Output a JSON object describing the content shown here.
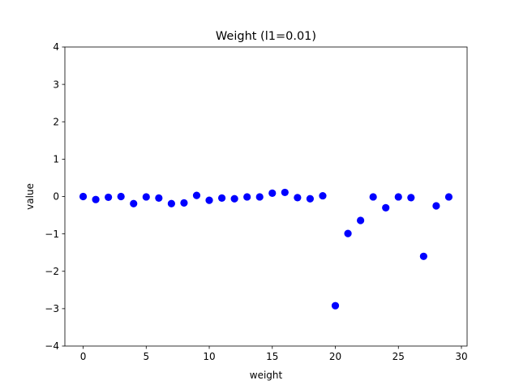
{
  "chart_data": {
    "type": "scatter",
    "title": "Weight (l1=0.01)",
    "xlabel": "weight",
    "ylabel": "value",
    "xlim": [
      -1.45,
      30.45
    ],
    "ylim": [
      -4,
      4
    ],
    "xticks": [
      0,
      5,
      10,
      15,
      20,
      25,
      30
    ],
    "yticks": [
      -4,
      -3,
      -2,
      -1,
      0,
      1,
      2,
      3,
      4
    ],
    "xtick_labels": [
      "0",
      "5",
      "10",
      "15",
      "20",
      "25",
      "30"
    ],
    "ytick_labels": [
      "−4",
      "−3",
      "−2",
      "−1",
      "0",
      "1",
      "2",
      "3",
      "4"
    ],
    "grid": false,
    "marker_color": "#0000ff",
    "series": [
      {
        "x": [
          0,
          1,
          2,
          3,
          4,
          5,
          6,
          7,
          8,
          9,
          10,
          11,
          12,
          13,
          14,
          15,
          16,
          17,
          18,
          19,
          20,
          21,
          22,
          23,
          24,
          25,
          26,
          27,
          28,
          29
        ],
        "y": [
          0.0,
          -0.08,
          -0.02,
          0.0,
          -0.19,
          -0.01,
          -0.04,
          -0.19,
          -0.17,
          0.03,
          -0.1,
          -0.04,
          -0.06,
          -0.01,
          -0.01,
          0.09,
          0.11,
          -0.03,
          -0.06,
          0.02,
          -2.92,
          -0.99,
          -0.64,
          -0.01,
          -0.3,
          -0.01,
          -0.03,
          -1.6,
          -0.25,
          -0.01
        ]
      }
    ]
  }
}
